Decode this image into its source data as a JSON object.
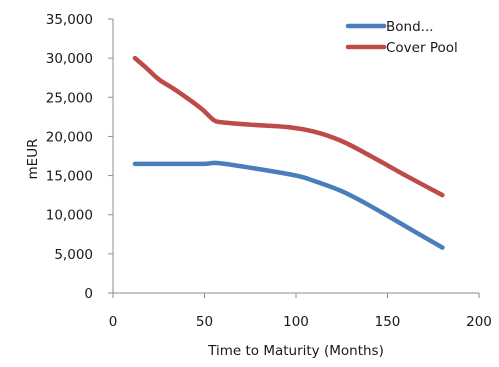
{
  "chart_data": {
    "type": "line",
    "title": "",
    "xlabel": "Time to Maturity (Months)",
    "ylabel": "mEUR",
    "xlim": [
      0,
      200
    ],
    "ylim": [
      0,
      35000
    ],
    "x_ticks": [
      0,
      50,
      100,
      150,
      200
    ],
    "y_ticks": [
      0,
      5000,
      10000,
      15000,
      20000,
      25000,
      30000,
      35000
    ],
    "x_tick_labels": [
      "0",
      "50",
      "100",
      "150",
      "200"
    ],
    "y_tick_labels": [
      "0",
      "5,000",
      "10,000",
      "15,000",
      "20,000",
      "25,000",
      "30,000",
      "35,000"
    ],
    "grid": false,
    "legend_position": "top-right",
    "series": [
      {
        "name": "Bond...",
        "color": "#4a7ebb",
        "points": [
          [
            12,
            16500
          ],
          [
            30,
            16500
          ],
          [
            50,
            16500
          ],
          [
            57,
            16600
          ],
          [
            75,
            16000
          ],
          [
            100,
            15000
          ],
          [
            110,
            14300
          ],
          [
            125,
            13000
          ],
          [
            140,
            11200
          ],
          [
            160,
            8500
          ],
          [
            180,
            5800
          ]
        ]
      },
      {
        "name": "Cover Pool",
        "color": "#be4b48",
        "points": [
          [
            12,
            30000
          ],
          [
            18,
            28800
          ],
          [
            25,
            27300
          ],
          [
            35,
            25800
          ],
          [
            48,
            23600
          ],
          [
            55,
            22100
          ],
          [
            60,
            21800
          ],
          [
            75,
            21500
          ],
          [
            95,
            21200
          ],
          [
            110,
            20600
          ],
          [
            125,
            19400
          ],
          [
            140,
            17600
          ],
          [
            160,
            15000
          ],
          [
            180,
            12500
          ]
        ]
      }
    ]
  }
}
